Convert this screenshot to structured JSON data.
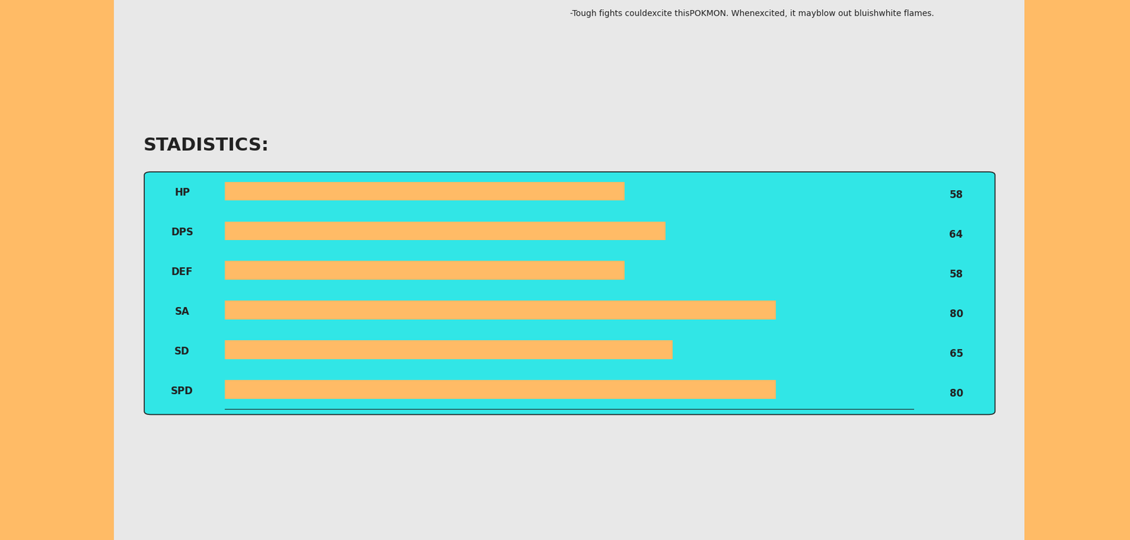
{
  "chart_data": {
    "type": "bar",
    "title": "STADISTICS:",
    "annotations": [
      "-Tough fights couldexcite thisPOKMON. Whenexcited, it mayblow out bluishwhite flames."
    ],
    "orientation": "horizontal",
    "categories": [
      "HP",
      "DPS",
      "DEF",
      "SA",
      "SD",
      "SPD"
    ],
    "values": [
      58,
      64,
      58,
      80,
      65,
      80
    ],
    "color": "#ffbb66",
    "xlim": [
      0,
      100
    ],
    "data_labels": true,
    "tick_labels": "y",
    "grid": false
  }
}
